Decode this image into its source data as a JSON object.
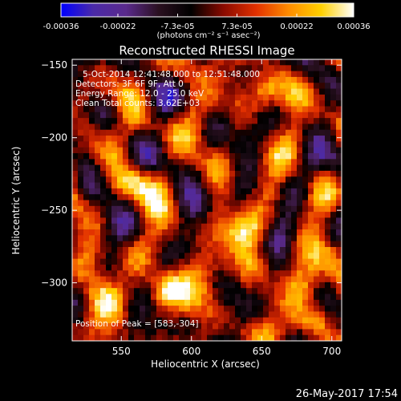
{
  "chart_data": {
    "type": "heatmap",
    "title": "Reconstructed RHESSI Image",
    "xlabel": "Heliocentric X (arcsec)",
    "ylabel": "Heliocentric Y (arcsec)",
    "xlim": [
      515,
      707
    ],
    "ylim": [
      -340,
      -146
    ],
    "x_ticks": [
      550,
      600,
      650,
      700
    ],
    "y_ticks": [
      -150,
      -200,
      -250,
      -300
    ],
    "colorbar": {
      "range": [
        -0.00036,
        0.00036
      ],
      "tick_values": [
        -0.00036,
        -0.00022,
        -7.3e-05,
        7.3e-05,
        0.00022,
        0.00036
      ],
      "tick_labels": [
        "-0.00036",
        "-0.00022",
        "-7.3e-05",
        "7.3e-05",
        "0.00022",
        "0.00036"
      ],
      "unit_text": "(photons cm⁻² s⁻¹ asec⁻²)",
      "colormap": [
        "#0000ff",
        "#4b2aa8",
        "#5a2a8c",
        "#2a1020",
        "#000000",
        "#8a0a00",
        "#e23000",
        "#ff8c00",
        "#ffd000",
        "#ffffff"
      ]
    },
    "annotations": [
      "5-Oct-2014 12:41:48.000 to 12:51:48.000",
      "Detectors: 3F 6F 9F, Att 0",
      "Energy Range: 12.0 - 25.0 keV",
      "Clean    Total counts: 3.62E+03"
    ],
    "peak_text": "Position of Peak = [583,-304]",
    "peak": {
      "x": 583,
      "y": -304
    },
    "grid_shape": [
      48,
      48
    ],
    "bright_sources": [
      {
        "x": 583,
        "y": -304,
        "value": 0.00036
      },
      {
        "x": 540,
        "y": -310,
        "value": 0.0003
      },
      {
        "x": 615,
        "y": -288,
        "value": 0.0003
      },
      {
        "x": 679,
        "y": -302,
        "value": 0.0003
      },
      {
        "x": 653,
        "y": -168,
        "value": 0.00028
      },
      {
        "x": 559,
        "y": -232,
        "value": 0.00026
      },
      {
        "x": 645,
        "y": -262,
        "value": 0.00026
      },
      {
        "x": 690,
        "y": -325,
        "value": 0.00024
      }
    ],
    "grid": false,
    "timestamp": "26-May-2017 17:54"
  }
}
